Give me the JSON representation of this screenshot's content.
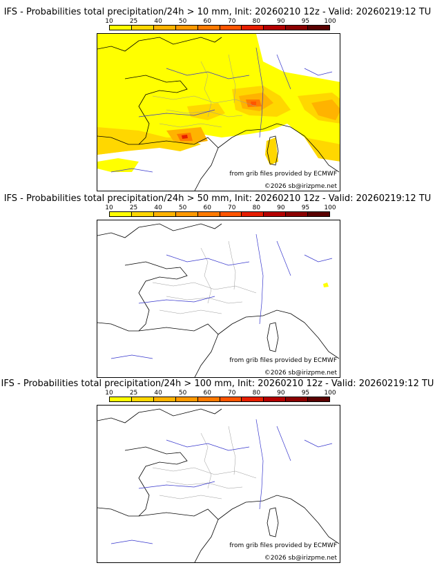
{
  "colorbar": {
    "labels": [
      "10",
      "25",
      "40",
      "50",
      "60",
      "70",
      "80",
      "90",
      "95",
      "100"
    ],
    "colors": [
      "#ffff00",
      "#ffd700",
      "#ffb300",
      "#ff9900",
      "#ff7a00",
      "#ff5500",
      "#e61e00",
      "#b40000",
      "#8b0000",
      "#5a0000"
    ]
  },
  "panels": [
    {
      "title": "IFS - Probabilities total precipitation/24h > 10 mm, Init: 20260210 12z - Valid: 20260219:12 TU",
      "source_credit": "from grib files provided by ECMWF",
      "copyright": "©2026 sb@irizpme.net",
      "threshold_mm": 10
    },
    {
      "title": "IFS - Probabilities total precipitation/24h > 50 mm, Init: 20260210 12z - Valid: 20260219:12 TU",
      "source_credit": "from grib files provided by ECMWF",
      "copyright": "©2026 sb@irizpme.net",
      "threshold_mm": 50
    },
    {
      "title": "IFS - Probabilities total precipitation/24h > 100 mm, Init: 20260210 12z - Valid: 20260219:12 TU",
      "source_credit": "from grib files provided by ECMWF",
      "copyright": "©2026 sb@irizpme.net",
      "threshold_mm": 100
    }
  ]
}
